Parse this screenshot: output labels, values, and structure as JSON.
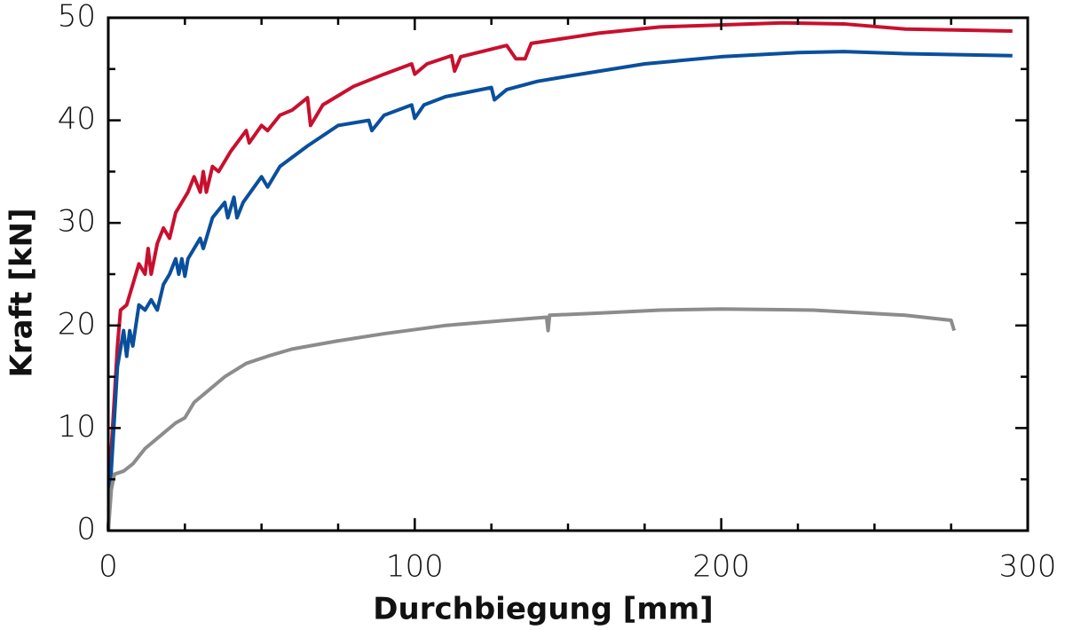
{
  "chart_data": {
    "type": "line",
    "xlabel": "Durchbiegung [mm]",
    "ylabel": "Kraft [kN]",
    "xlim": [
      0,
      300
    ],
    "xticks": [
      0,
      100,
      200,
      300
    ],
    "xminorticks": [
      25,
      50,
      75,
      125,
      150,
      175,
      225,
      250,
      275
    ],
    "ylim": [
      0,
      50
    ],
    "yticks": [
      0,
      10,
      20,
      30,
      40,
      50
    ],
    "yminorticks": [
      5,
      15,
      25,
      35,
      45
    ],
    "grid": false,
    "series": [
      {
        "color": "#c8102e",
        "x": [
          0,
          1,
          3,
          4,
          6,
          8,
          10,
          12,
          13,
          14,
          16,
          18,
          20,
          22,
          26,
          28,
          30,
          31,
          32,
          34,
          36,
          40,
          45,
          46,
          50,
          52,
          56,
          60,
          65,
          66,
          70,
          80,
          90,
          99,
          100,
          104,
          112,
          113,
          115,
          130,
          133,
          136,
          138,
          160,
          180,
          200,
          220,
          240,
          260,
          295
        ],
        "values": [
          0,
          8,
          18,
          21.5,
          22,
          24,
          26,
          25,
          27.5,
          25,
          28,
          29.5,
          28.5,
          31,
          33,
          34.5,
          33,
          35,
          33,
          35.5,
          35,
          37,
          39,
          37.8,
          39.5,
          39,
          40.5,
          41,
          42.2,
          39.5,
          41.5,
          43.3,
          44.5,
          45.5,
          44.5,
          45.5,
          46.3,
          44.8,
          46.2,
          47.3,
          46,
          46,
          47.5,
          48.5,
          49.1,
          49.3,
          49.5,
          49.4,
          48.9,
          48.7
        ]
      },
      {
        "color": "#0a4f9c",
        "x": [
          0,
          1,
          3,
          5,
          6,
          7,
          8,
          10,
          12,
          14,
          16,
          18,
          20,
          22,
          23,
          24,
          25,
          26,
          30,
          31,
          34,
          38,
          39,
          41,
          42,
          44,
          50,
          52,
          56,
          65,
          75,
          85,
          86,
          90,
          99,
          100,
          103,
          110,
          125,
          126,
          130,
          140,
          150,
          175,
          200,
          225,
          240,
          260,
          295
        ],
        "values": [
          0,
          6,
          16,
          19.5,
          17,
          19.5,
          18,
          22,
          21.5,
          22.5,
          21.5,
          24,
          25,
          26.5,
          25,
          26.5,
          24.8,
          26.5,
          28.5,
          27.5,
          30.5,
          32,
          30.5,
          32.5,
          30.5,
          32,
          34.5,
          33.5,
          35.5,
          37.5,
          39.5,
          40,
          39,
          40.5,
          41.5,
          40.2,
          41.5,
          42.3,
          43.2,
          42,
          43,
          43.8,
          44.3,
          45.5,
          46.2,
          46.6,
          46.7,
          46.5,
          46.3
        ]
      },
      {
        "color": "#8c8c8c",
        "x": [
          0,
          1,
          2,
          5,
          8,
          12,
          18,
          22,
          25,
          28,
          32,
          38,
          45,
          52,
          60,
          75,
          90,
          110,
          130,
          143,
          143.5,
          144,
          160,
          180,
          200,
          230,
          260,
          275,
          276
        ],
        "values": [
          0,
          4,
          5.5,
          5.8,
          6.5,
          8,
          9.5,
          10.5,
          11,
          12.5,
          13.5,
          15,
          16.3,
          17,
          17.7,
          18.5,
          19.2,
          20,
          20.5,
          20.8,
          19.5,
          21,
          21.2,
          21.5,
          21.6,
          21.5,
          21,
          20.5,
          19.5
        ]
      }
    ]
  }
}
